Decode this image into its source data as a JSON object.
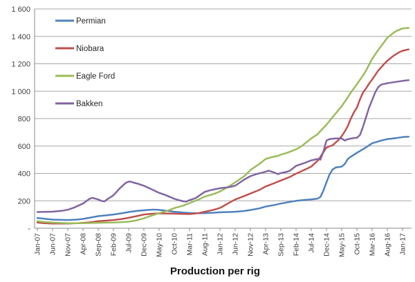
{
  "chart_data": {
    "type": "line",
    "title": "Production per rig",
    "grid": true,
    "legend_position": "top-left-inside",
    "ylim": [
      0,
      1600
    ],
    "y_ticks": [
      {
        "v": 0,
        "label": "-"
      },
      {
        "v": 200,
        "label": "200"
      },
      {
        "v": 400,
        "label": "400"
      },
      {
        "v": 600,
        "label": "600"
      },
      {
        "v": 800,
        "label": "800"
      },
      {
        "v": 1000,
        "label": "1 000"
      },
      {
        "v": 1200,
        "label": "1 200"
      },
      {
        "v": 1400,
        "label": "1 400"
      },
      {
        "v": 1600,
        "label": "1 600"
      }
    ],
    "x_tick_labels": [
      "Jan-07",
      "Jun-07",
      "Nov-07",
      "Apr-08",
      "Sep-08",
      "Feb-09",
      "Jul-09",
      "Dec-09",
      "May-10",
      "Oct-10",
      "Mar-11",
      "Aug-11",
      "Jan-12",
      "Jun-12",
      "Nov-12",
      "Apr-13",
      "Sep-13",
      "Feb-14",
      "Jul-14",
      "Dec-14",
      "May-15",
      "Oct-15",
      "Mar-16",
      "Aug-16",
      "Jan-17"
    ],
    "x_tick_interval_months": 5,
    "x_month_span": [
      0,
      122
    ],
    "style": {
      "grid_color": "#a6a6a6",
      "axis_color": "#898989",
      "text_color": "#404040",
      "title_color": "#141414"
    },
    "series": [
      {
        "name": "Permian",
        "color": "#4F81BD",
        "points": [
          [
            0,
            75
          ],
          [
            2,
            70
          ],
          [
            5,
            63
          ],
          [
            8,
            61
          ],
          [
            10,
            60
          ],
          [
            13,
            63
          ],
          [
            15,
            68
          ],
          [
            18,
            80
          ],
          [
            20,
            88
          ],
          [
            23,
            95
          ],
          [
            25,
            100
          ],
          [
            28,
            110
          ],
          [
            30,
            118
          ],
          [
            33,
            127
          ],
          [
            35,
            131
          ],
          [
            38,
            136
          ],
          [
            40,
            134
          ],
          [
            43,
            126
          ],
          [
            45,
            120
          ],
          [
            48,
            114
          ],
          [
            50,
            111
          ],
          [
            53,
            109
          ],
          [
            55,
            110
          ],
          [
            58,
            113
          ],
          [
            60,
            116
          ],
          [
            63,
            118
          ],
          [
            65,
            120
          ],
          [
            68,
            126
          ],
          [
            70,
            133
          ],
          [
            73,
            145
          ],
          [
            75,
            158
          ],
          [
            78,
            170
          ],
          [
            80,
            180
          ],
          [
            83,
            192
          ],
          [
            85,
            200
          ],
          [
            88,
            207
          ],
          [
            90,
            210
          ],
          [
            92,
            216
          ],
          [
            93,
            228
          ],
          [
            94,
            275
          ],
          [
            95,
            335
          ],
          [
            96,
            392
          ],
          [
            97,
            428
          ],
          [
            98,
            443
          ],
          [
            100,
            450
          ],
          [
            101,
            468
          ],
          [
            102,
            505
          ],
          [
            103,
            522
          ],
          [
            105,
            550
          ],
          [
            107,
            577
          ],
          [
            108,
            590
          ],
          [
            110,
            620
          ],
          [
            112,
            633
          ],
          [
            113,
            640
          ],
          [
            115,
            650
          ],
          [
            118,
            658
          ],
          [
            120,
            665
          ],
          [
            122,
            668
          ]
        ]
      },
      {
        "name": "Niobara",
        "color": "#C0504D",
        "points": [
          [
            0,
            42
          ],
          [
            2,
            37
          ],
          [
            5,
            34
          ],
          [
            8,
            34
          ],
          [
            10,
            34
          ],
          [
            13,
            36
          ],
          [
            15,
            39
          ],
          [
            18,
            45
          ],
          [
            20,
            52
          ],
          [
            23,
            56
          ],
          [
            25,
            60
          ],
          [
            28,
            68
          ],
          [
            30,
            76
          ],
          [
            33,
            90
          ],
          [
            35,
            100
          ],
          [
            38,
            106
          ],
          [
            40,
            108
          ],
          [
            43,
            107
          ],
          [
            45,
            106
          ],
          [
            48,
            104
          ],
          [
            50,
            103
          ],
          [
            53,
            110
          ],
          [
            55,
            120
          ],
          [
            58,
            135
          ],
          [
            60,
            148
          ],
          [
            63,
            185
          ],
          [
            65,
            210
          ],
          [
            68,
            235
          ],
          [
            70,
            253
          ],
          [
            73,
            280
          ],
          [
            75,
            305
          ],
          [
            78,
            330
          ],
          [
            80,
            348
          ],
          [
            83,
            375
          ],
          [
            85,
            398
          ],
          [
            88,
            428
          ],
          [
            90,
            450
          ],
          [
            92,
            490
          ],
          [
            93,
            520
          ],
          [
            94,
            555
          ],
          [
            95,
            588
          ],
          [
            96,
            598
          ],
          [
            97,
            605
          ],
          [
            98,
            625
          ],
          [
            99,
            645
          ],
          [
            100,
            672
          ],
          [
            101,
            705
          ],
          [
            102,
            745
          ],
          [
            103,
            800
          ],
          [
            104,
            845
          ],
          [
            105,
            880
          ],
          [
            106,
            940
          ],
          [
            107,
            990
          ],
          [
            108,
            1020
          ],
          [
            109,
            1055
          ],
          [
            110,
            1085
          ],
          [
            112,
            1150
          ],
          [
            114,
            1200
          ],
          [
            115,
            1222
          ],
          [
            116,
            1240
          ],
          [
            117,
            1258
          ],
          [
            118,
            1272
          ],
          [
            119,
            1285
          ],
          [
            120,
            1295
          ],
          [
            122,
            1305
          ]
        ]
      },
      {
        "name": "Eagle Ford",
        "color": "#9BBB59",
        "points": [
          [
            0,
            52
          ],
          [
            2,
            46
          ],
          [
            5,
            42
          ],
          [
            8,
            38
          ],
          [
            10,
            36
          ],
          [
            13,
            36
          ],
          [
            15,
            36
          ],
          [
            18,
            38
          ],
          [
            20,
            40
          ],
          [
            23,
            41
          ],
          [
            25,
            42
          ],
          [
            28,
            45
          ],
          [
            30,
            48
          ],
          [
            32,
            55
          ],
          [
            33,
            60
          ],
          [
            35,
            72
          ],
          [
            38,
            95
          ],
          [
            40,
            109
          ],
          [
            43,
            130
          ],
          [
            45,
            147
          ],
          [
            48,
            165
          ],
          [
            50,
            183
          ],
          [
            53,
            210
          ],
          [
            55,
            231
          ],
          [
            58,
            250
          ],
          [
            60,
            268
          ],
          [
            63,
            305
          ],
          [
            65,
            335
          ],
          [
            68,
            380
          ],
          [
            70,
            424
          ],
          [
            73,
            470
          ],
          [
            75,
            505
          ],
          [
            77,
            518
          ],
          [
            79,
            528
          ],
          [
            80,
            537
          ],
          [
            82,
            550
          ],
          [
            85,
            575
          ],
          [
            87,
            602
          ],
          [
            90,
            655
          ],
          [
            92,
            685
          ],
          [
            95,
            755
          ],
          [
            97,
            810
          ],
          [
            100,
            890
          ],
          [
            102,
            955
          ],
          [
            103,
            990
          ],
          [
            105,
            1050
          ],
          [
            107,
            1115
          ],
          [
            108,
            1150
          ],
          [
            110,
            1235
          ],
          [
            112,
            1300
          ],
          [
            113,
            1330
          ],
          [
            115,
            1390
          ],
          [
            117,
            1425
          ],
          [
            118,
            1440
          ],
          [
            120,
            1458
          ],
          [
            122,
            1462
          ]
        ]
      },
      {
        "name": "Bakken",
        "color": "#8064A2",
        "points": [
          [
            0,
            118
          ],
          [
            2,
            119
          ],
          [
            5,
            121
          ],
          [
            8,
            127
          ],
          [
            10,
            135
          ],
          [
            12,
            150
          ],
          [
            13,
            160
          ],
          [
            15,
            180
          ],
          [
            17,
            213
          ],
          [
            18,
            222
          ],
          [
            19,
            216
          ],
          [
            20,
            210
          ],
          [
            21,
            200
          ],
          [
            22,
            195
          ],
          [
            23,
            212
          ],
          [
            25,
            240
          ],
          [
            27,
            290
          ],
          [
            29,
            330
          ],
          [
            30,
            340
          ],
          [
            31,
            338
          ],
          [
            32,
            330
          ],
          [
            33,
            325
          ],
          [
            35,
            310
          ],
          [
            37,
            290
          ],
          [
            40,
            258
          ],
          [
            42,
            243
          ],
          [
            45,
            215
          ],
          [
            47,
            202
          ],
          [
            48,
            196
          ],
          [
            49,
            194
          ],
          [
            50,
            205
          ],
          [
            52,
            220
          ],
          [
            55,
            265
          ],
          [
            57,
            278
          ],
          [
            60,
            292
          ],
          [
            63,
            300
          ],
          [
            65,
            310
          ],
          [
            68,
            355
          ],
          [
            70,
            380
          ],
          [
            72,
            395
          ],
          [
            75,
            412
          ],
          [
            76,
            420
          ],
          [
            78,
            405
          ],
          [
            79,
            395
          ],
          [
            80,
            402
          ],
          [
            82,
            412
          ],
          [
            83,
            420
          ],
          [
            85,
            455
          ],
          [
            87,
            470
          ],
          [
            88,
            478
          ],
          [
            90,
            495
          ],
          [
            92,
            505
          ],
          [
            93,
            500
          ],
          [
            94,
            560
          ],
          [
            95,
            640
          ],
          [
            96,
            650
          ],
          [
            98,
            655
          ],
          [
            100,
            655
          ],
          [
            101,
            640
          ],
          [
            102,
            650
          ],
          [
            104,
            658
          ],
          [
            105,
            660
          ],
          [
            106,
            680
          ],
          [
            107,
            740
          ],
          [
            108,
            810
          ],
          [
            109,
            880
          ],
          [
            110,
            935
          ],
          [
            111,
            990
          ],
          [
            112,
            1030
          ],
          [
            113,
            1048
          ],
          [
            115,
            1058
          ],
          [
            117,
            1065
          ],
          [
            120,
            1075
          ],
          [
            122,
            1080
          ]
        ]
      }
    ]
  }
}
